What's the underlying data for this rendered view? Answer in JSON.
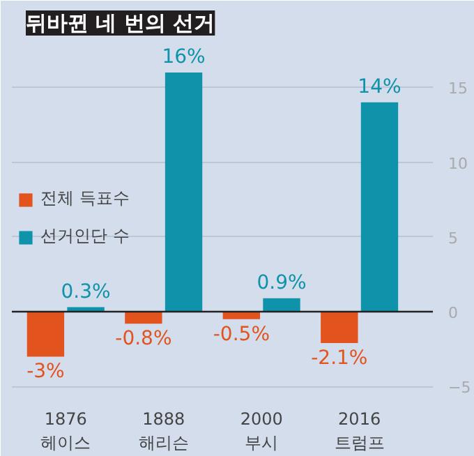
{
  "chart_data": {
    "type": "bar",
    "title": "뒤바뀐 네 번의 선거",
    "categories": [
      "1876\n헤이스",
      "1888\n해리슨",
      "2000\n부시",
      "2016\n트럼프"
    ],
    "series": [
      {
        "name": "전체 득표수",
        "color": "#e2531e",
        "values": [
          -3,
          -0.8,
          -0.5,
          -2.1
        ],
        "value_labels": [
          "-3%",
          "-0.8%",
          "-0.5%",
          "-2.1%"
        ]
      },
      {
        "name": "선거인단 수",
        "color": "#0e93aa",
        "values": [
          0.3,
          16,
          0.9,
          14
        ],
        "value_labels": [
          "0.3%",
          "16%",
          "0.9%",
          "14%"
        ]
      }
    ],
    "ylim": [
      -5.5,
      18
    ],
    "yticks": [
      -5,
      0,
      5,
      10,
      15
    ],
    "grid": "y",
    "legend": "left"
  }
}
